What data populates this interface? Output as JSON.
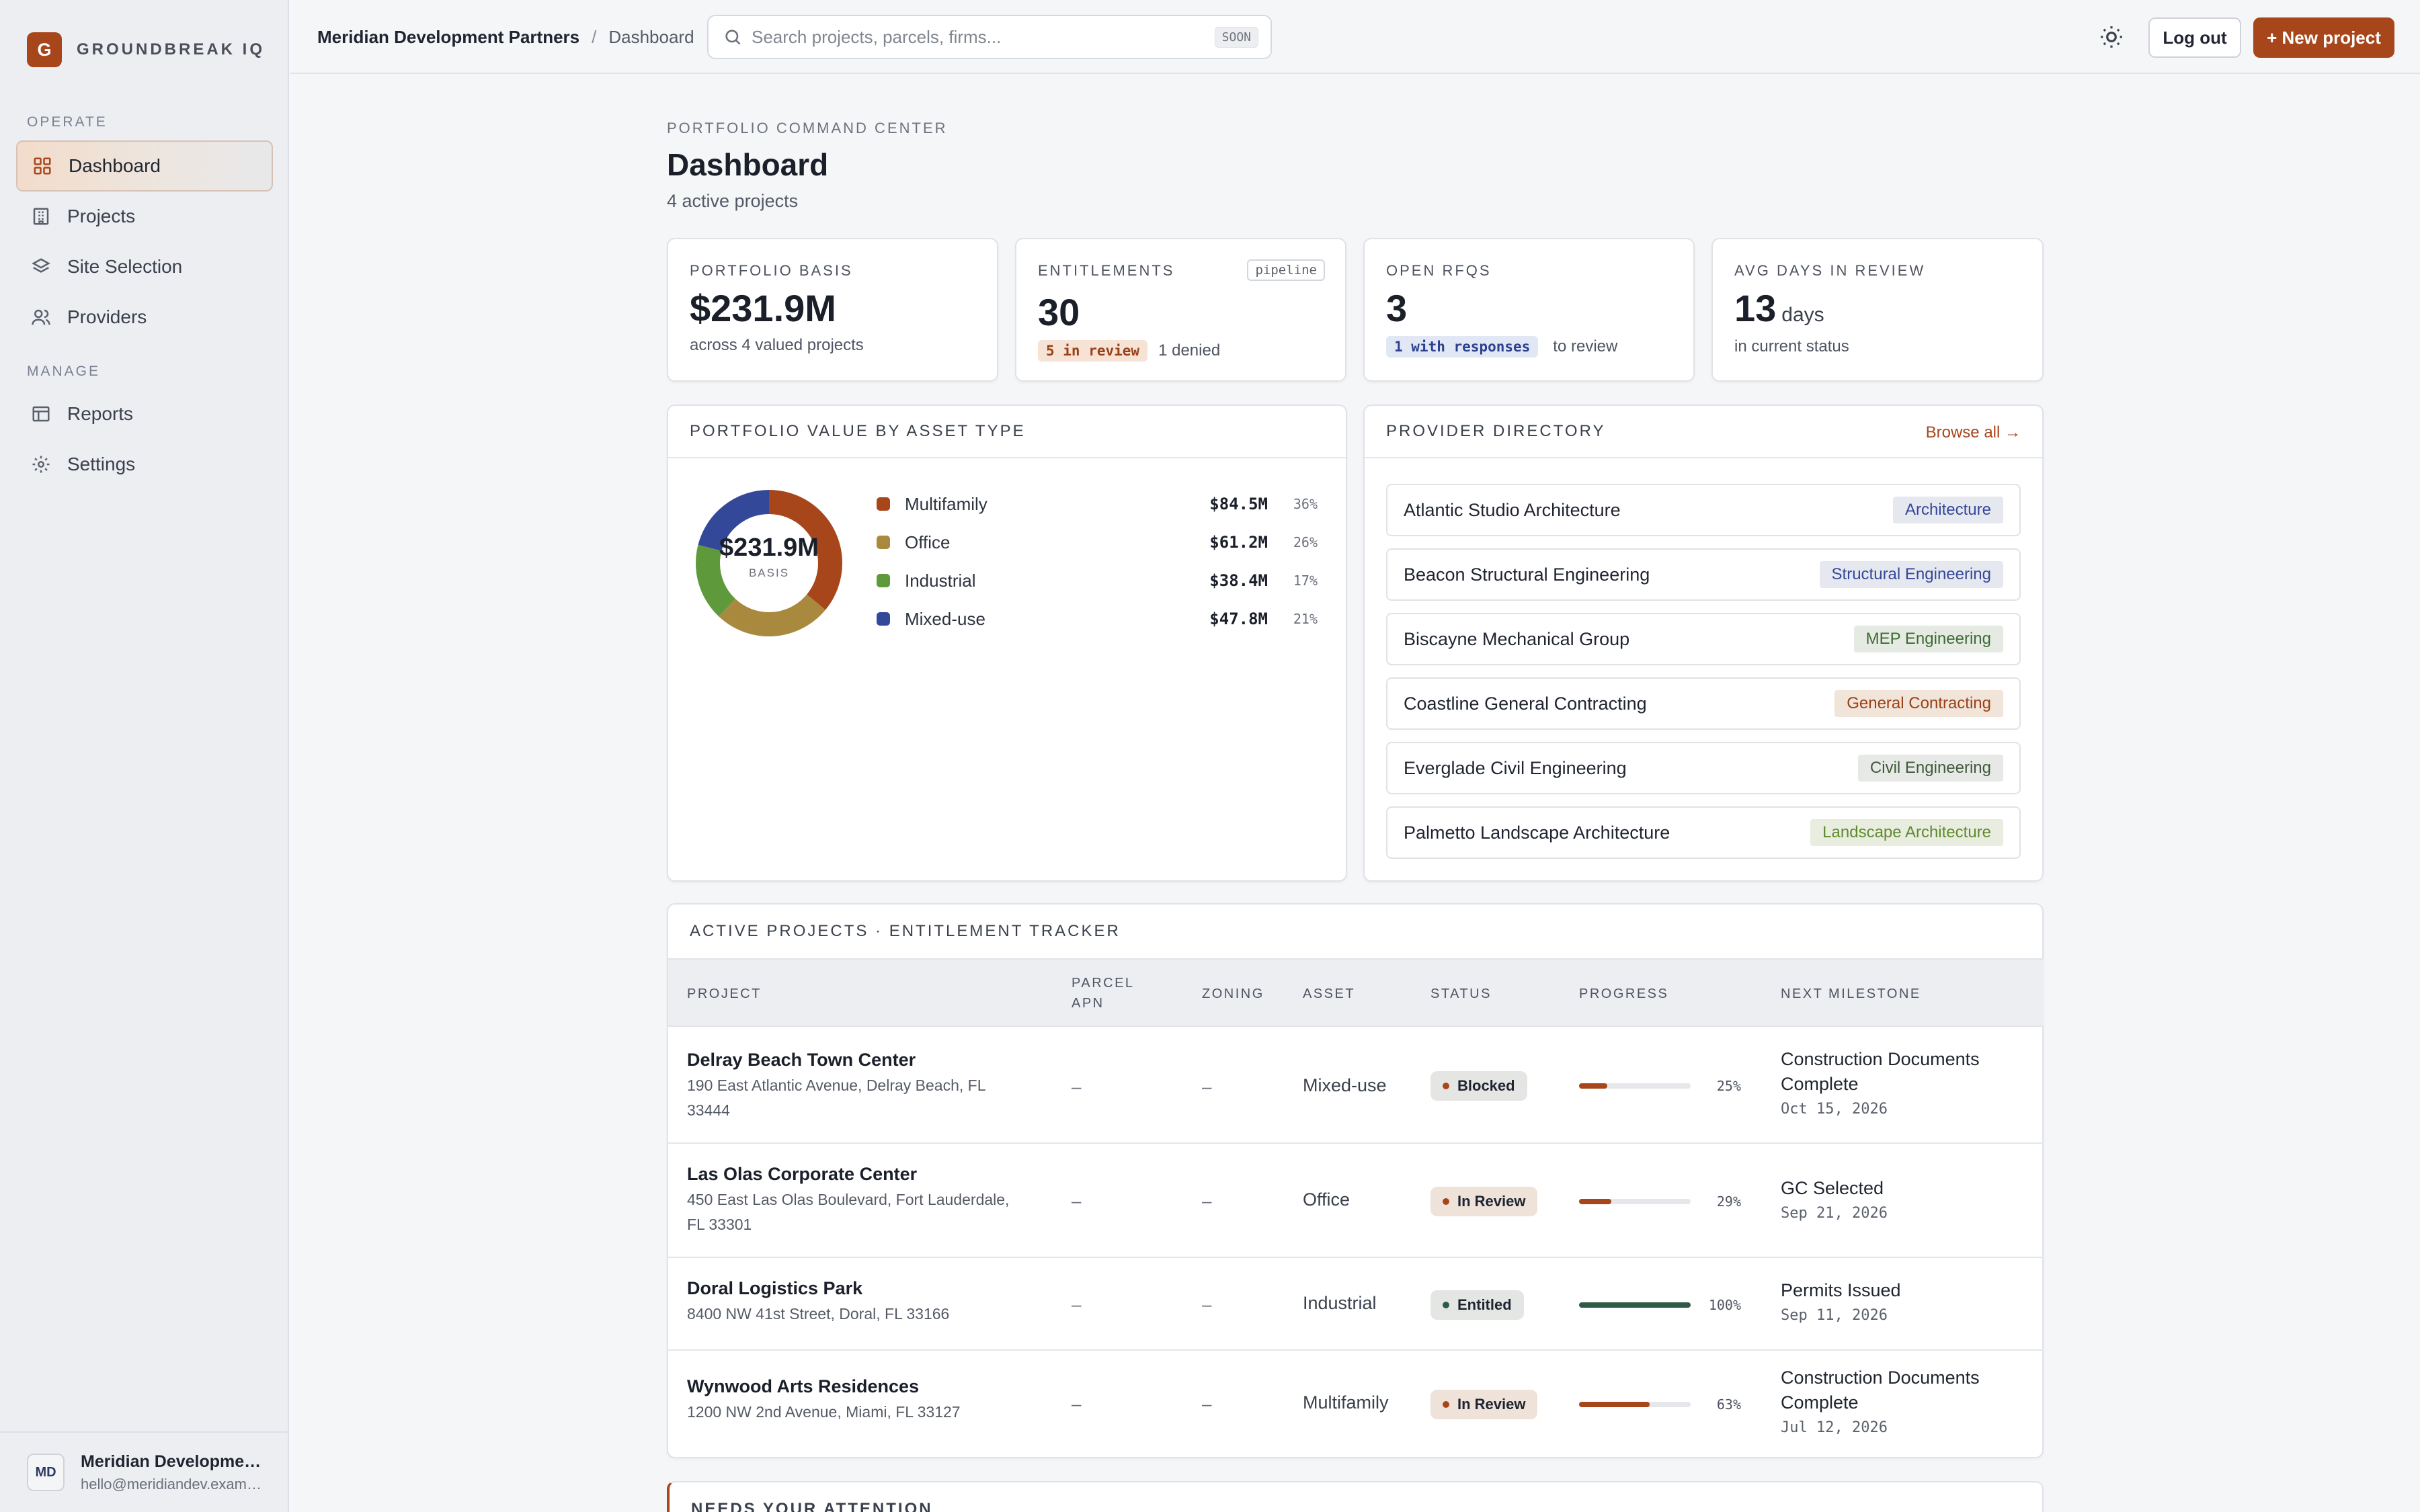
{
  "app": {
    "brand_letter": "G",
    "brand_name": "GROUNDBREAK IQ"
  },
  "sidebar": {
    "sections": [
      {
        "label": "OPERATE"
      },
      {
        "label": "MANAGE"
      }
    ],
    "items": [
      {
        "label": "Dashboard",
        "icon": "grid-icon",
        "active": true
      },
      {
        "label": "Projects",
        "icon": "building-icon"
      },
      {
        "label": "Site Selection",
        "icon": "layers-icon"
      },
      {
        "label": "Providers",
        "icon": "users-icon"
      },
      {
        "label": "Reports",
        "icon": "table-icon"
      },
      {
        "label": "Settings",
        "icon": "gear-icon"
      }
    ],
    "user": {
      "initials": "MD",
      "name": "Meridian Development Partners",
      "email": "hello@meridiandev.example"
    }
  },
  "topbar": {
    "org": "Meridian Development Partners",
    "separator": "/",
    "page": "Dashboard",
    "search_placeholder": "Search projects, parcels, firms...",
    "search_badge": "SOON",
    "logout_label": "Log out",
    "new_project_label": "+ New project"
  },
  "header": {
    "eyebrow": "PORTFOLIO COMMAND CENTER",
    "title": "Dashboard",
    "subtitle": "4 active projects"
  },
  "kpis": {
    "basis": {
      "label": "PORTFOLIO BASIS",
      "value": "$231.9M",
      "note": "across 4 valued projects"
    },
    "entitlements": {
      "label": "ENTITLEMENTS",
      "tag": "pipeline",
      "value": "30",
      "chip": "5 in review",
      "note": "1 denied"
    },
    "rfqs": {
      "label": "OPEN RFQS",
      "value": "3",
      "chip": "1 with responses",
      "note": "to review"
    },
    "days": {
      "label": "AVG DAYS IN REVIEW",
      "value": "13",
      "unit": "days",
      "note": "in current status"
    }
  },
  "portfolio": {
    "title": "PORTFOLIO VALUE BY ASSET TYPE",
    "center_value": "$231.9M",
    "center_label": "BASIS",
    "slices": [
      {
        "name": "Multifamily",
        "value": "$84.5M",
        "pct": "36%",
        "share": 36,
        "color": "#a8461b"
      },
      {
        "name": "Office",
        "value": "$61.2M",
        "pct": "26%",
        "share": 26,
        "color": "#a8893e"
      },
      {
        "name": "Industrial",
        "value": "$38.4M",
        "pct": "17%",
        "share": 17,
        "color": "#5e9a3c"
      },
      {
        "name": "Mixed-use",
        "value": "$47.8M",
        "pct": "21%",
        "share": 21,
        "color": "#34489a"
      }
    ]
  },
  "providers": {
    "title": "PROVIDER DIRECTORY",
    "browse_label": "Browse all →",
    "items": [
      {
        "name": "Atlantic Studio Architecture",
        "category": "Architecture",
        "bg": "#e6e8ef",
        "fg": "#34489a"
      },
      {
        "name": "Beacon Structural Engineering",
        "category": "Structural Engineering",
        "bg": "#e6e8ef",
        "fg": "#34489a"
      },
      {
        "name": "Biscayne Mechanical Group",
        "category": "MEP Engineering",
        "bg": "#e5ebe3",
        "fg": "#3d6a34"
      },
      {
        "name": "Coastline General Contracting",
        "category": "General Contracting",
        "bg": "#f1e4d8",
        "fg": "#9a4017"
      },
      {
        "name": "Everglade Civil Engineering",
        "category": "Civil Engineering",
        "bg": "#e7e9e6",
        "fg": "#3f5a3a"
      },
      {
        "name": "Palmetto Landscape Architecture",
        "category": "Landscape Architecture",
        "bg": "#e9eddf",
        "fg": "#5e8a2e"
      }
    ]
  },
  "projects": {
    "title": "ACTIVE PROJECTS · ENTITLEMENT TRACKER",
    "columns": {
      "project": "PROJECT",
      "parcel": "PARCEL APN",
      "zoning": "ZONING",
      "asset": "ASSET",
      "status": "STATUS",
      "progress": "PROGRESS",
      "milestone": "NEXT MILESTONE"
    },
    "rows": [
      {
        "name": "Delray Beach Town Center",
        "address": "190 East Atlantic Avenue, Delray Beach, FL 33444",
        "parcel": "–",
        "zoning": "–",
        "asset": "Mixed-use",
        "status": "Blocked",
        "status_bg": "#e5e5e3",
        "status_dot": "#a8461b",
        "progress": 25,
        "progress_label": "25%",
        "progress_color": "#a8461b",
        "milestone": "Construction Documents Complete",
        "milestone_date": "Oct 15, 2026"
      },
      {
        "name": "Las Olas Corporate Center",
        "address": "450 East Las Olas Boulevard, Fort Lauderdale, FL 33301",
        "parcel": "–",
        "zoning": "–",
        "asset": "Office",
        "status": "In Review",
        "status_bg": "#eee2d9",
        "status_dot": "#a8461b",
        "progress": 29,
        "progress_label": "29%",
        "progress_color": "#a8461b",
        "milestone": "GC Selected",
        "milestone_date": "Sep 21, 2026"
      },
      {
        "name": "Doral Logistics Park",
        "address": "8400 NW 41st Street, Doral, FL 33166",
        "parcel": "–",
        "zoning": "–",
        "asset": "Industrial",
        "status": "Entitled",
        "status_bg": "#e4e6e4",
        "status_dot": "#2f5a45",
        "progress": 100,
        "progress_label": "100%",
        "progress_color": "#2f5a45",
        "milestone": "Permits Issued",
        "milestone_date": "Sep 11, 2026"
      },
      {
        "name": "Wynwood Arts Residences",
        "address": "1200 NW 2nd Avenue, Miami, FL 33127",
        "parcel": "–",
        "zoning": "–",
        "asset": "Multifamily",
        "status": "In Review",
        "status_bg": "#eee2d9",
        "status_dot": "#a8461b",
        "progress": 63,
        "progress_label": "63%",
        "progress_color": "#a8461b",
        "milestone": "Construction Documents Complete",
        "milestone_date": "Jul 12, 2026"
      }
    ]
  },
  "attention": {
    "title": "NEEDS YOUR ATTENTION"
  }
}
